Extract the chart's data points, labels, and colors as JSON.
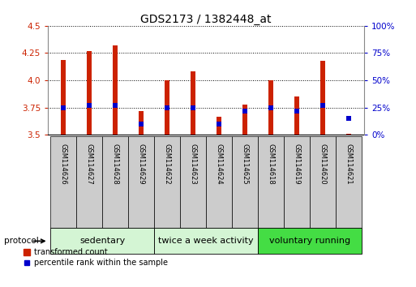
{
  "title": "GDS2173 / 1382448_at",
  "samples": [
    "GSM114626",
    "GSM114627",
    "GSM114628",
    "GSM114629",
    "GSM114622",
    "GSM114623",
    "GSM114624",
    "GSM114625",
    "GSM114618",
    "GSM114619",
    "GSM114620",
    "GSM114621"
  ],
  "red_values": [
    4.19,
    4.27,
    4.32,
    3.72,
    4.0,
    4.08,
    3.67,
    3.78,
    4.0,
    3.85,
    4.18,
    3.51
  ],
  "blue_values": [
    25,
    27,
    27,
    10,
    25,
    25,
    10,
    22,
    25,
    22,
    27,
    15
  ],
  "baseline": 3.5,
  "ylim_left": [
    3.5,
    4.5
  ],
  "ylim_right": [
    0,
    100
  ],
  "yticks_left": [
    3.5,
    3.75,
    4.0,
    4.25,
    4.5
  ],
  "yticks_right": [
    0,
    25,
    50,
    75,
    100
  ],
  "ytick_labels_right": [
    "0%",
    "25%",
    "50%",
    "75%",
    "100%"
  ],
  "groups": [
    {
      "label": "sedentary",
      "start": 0,
      "end": 4,
      "color": "#d4f5d4"
    },
    {
      "label": "twice a week activity",
      "start": 4,
      "end": 8,
      "color": "#d4f5d4"
    },
    {
      "label": "voluntary running",
      "start": 8,
      "end": 12,
      "color": "#44dd44"
    }
  ],
  "bar_color": "#cc2200",
  "blue_color": "#0000cc",
  "bar_width": 0.18,
  "blue_marker_size": 5,
  "grid_color": "#000000",
  "bg_color": "#ffffff",
  "label_bg_color": "#cccccc",
  "protocol_label": "protocol",
  "legend_red": "transformed count",
  "legend_blue": "percentile rank within the sample",
  "title_fontsize": 10,
  "tick_fontsize": 7.5,
  "sample_fontsize": 6,
  "group_fontsize": 8
}
